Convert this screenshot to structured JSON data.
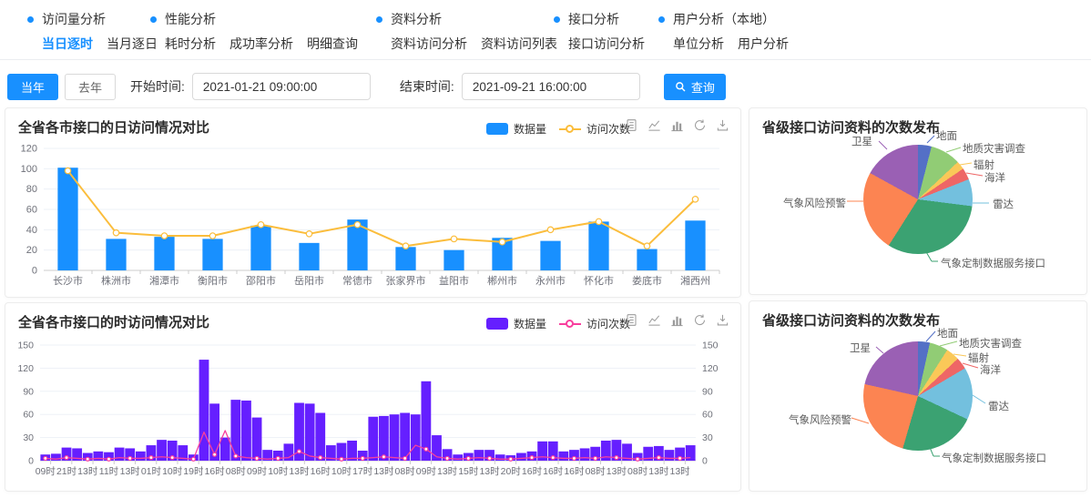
{
  "nav": {
    "groups": [
      {
        "title": "访问量分析",
        "items": [
          {
            "label": "当日逐时",
            "active": true
          },
          {
            "label": "当月逐日",
            "active": false
          }
        ]
      },
      {
        "title": "性能分析",
        "items": [
          {
            "label": "耗时分析",
            "active": false
          },
          {
            "label": "成功率分析",
            "active": false
          },
          {
            "label": "明细查询",
            "active": false
          }
        ]
      },
      {
        "title": "资料分析",
        "items": [
          {
            "label": "资料访问分析",
            "active": false
          },
          {
            "label": "资料访问列表",
            "active": false
          }
        ]
      },
      {
        "title": "接口分析",
        "items": [
          {
            "label": "接口访问分析",
            "active": false
          }
        ]
      },
      {
        "title": "用户分析（本地）",
        "items": [
          {
            "label": "单位分析",
            "active": false
          },
          {
            "label": "用户分析",
            "active": false
          }
        ]
      }
    ]
  },
  "filters": {
    "this_year": "当年",
    "last_year": "去年",
    "start_label": "开始时间:",
    "start_value": "2021-01-21 09:00:00",
    "end_label": "结束时间:",
    "end_value": "2021-09-21 16:00:00",
    "search_label": "查询"
  },
  "colors": {
    "primary": "#1890ff"
  },
  "toolbox_icons": [
    "data-view",
    "line-chart",
    "bar-chart",
    "restore",
    "download"
  ],
  "chart_data": [
    {
      "id": "daily",
      "type": "bar",
      "title": "全省各市接口的日访问情况对比",
      "categories": [
        "长沙市",
        "株洲市",
        "湘潭市",
        "衡阳市",
        "邵阳市",
        "岳阳市",
        "常德市",
        "张家界市",
        "益阳市",
        "郴州市",
        "永州市",
        "怀化市",
        "娄底市",
        "湘西州"
      ],
      "series": [
        {
          "name": "数据量",
          "type": "bar",
          "color": "#1890ff",
          "values": [
            101,
            31,
            33,
            31,
            44,
            27,
            50,
            23,
            20,
            32,
            29,
            48,
            21,
            49
          ]
        },
        {
          "name": "访问次数",
          "type": "line",
          "color": "#fbbd3c",
          "values": [
            98,
            37,
            34,
            34,
            45,
            36,
            45,
            24,
            31,
            28,
            40,
            48,
            24,
            70
          ]
        }
      ],
      "ylim": [
        0,
        120
      ],
      "y_interval": 20,
      "grid": true,
      "legend_position": "top"
    },
    {
      "id": "hourly",
      "type": "bar",
      "title": "全省各市接口的时访问情况对比",
      "x_labels": [
        "09时",
        "21时",
        "13时",
        "11时",
        "13时",
        "01时",
        "10时",
        "19时",
        "16时",
        "08时",
        "09时",
        "10时",
        "13时",
        "16时",
        "10时",
        "17时",
        "13时",
        "08时",
        "09时",
        "13时",
        "15时",
        "13时",
        "20时",
        "16时",
        "16时",
        "16时",
        "08时",
        "13时",
        "08时",
        "13时",
        "13时"
      ],
      "label_interval": 2,
      "series": [
        {
          "name": "数据量",
          "type": "bar",
          "color": "#651fff",
          "values": [
            8,
            9,
            17,
            16,
            10,
            12,
            11,
            17,
            16,
            12,
            20,
            27,
            26,
            20,
            8,
            131,
            74,
            30,
            79,
            78,
            56,
            14,
            13,
            22,
            75,
            74,
            62,
            20,
            23,
            26,
            13,
            57,
            58,
            60,
            62,
            60,
            103,
            33,
            15,
            8,
            10,
            14,
            14,
            8,
            7,
            10,
            12,
            25,
            25,
            12,
            14,
            16,
            18,
            26,
            27,
            22,
            10,
            18,
            19,
            14,
            17,
            20
          ]
        },
        {
          "name": "访问次数",
          "type": "line",
          "color": "#f83e9d",
          "values": [
            3,
            2,
            4,
            3,
            2,
            3,
            2,
            4,
            3,
            3,
            4,
            5,
            4,
            3,
            2,
            37,
            8,
            39,
            6,
            4,
            3,
            2,
            3,
            4,
            12,
            6,
            4,
            3,
            2,
            3,
            3,
            4,
            5,
            4,
            3,
            20,
            15,
            5,
            3,
            2,
            3,
            4,
            3,
            2,
            2,
            3,
            4,
            5,
            4,
            3,
            3,
            4,
            3,
            5,
            4,
            3,
            2,
            3,
            4,
            3,
            3,
            4
          ]
        }
      ],
      "ylim": [
        0,
        150
      ],
      "y_interval": 30,
      "grid": true,
      "dual_axis": true,
      "legend_position": "top"
    },
    {
      "id": "pie-province-1",
      "type": "pie",
      "title": "省级接口访问资料的次数发布",
      "slices": [
        {
          "label": "地面",
          "value": 4,
          "color": "#5470c6"
        },
        {
          "label": "地质灾害调查",
          "value": 9,
          "color": "#91cc75"
        },
        {
          "label": "辐射",
          "value": 2.5,
          "color": "#fac858"
        },
        {
          "label": "海洋",
          "value": 3.5,
          "color": "#ee6666"
        },
        {
          "label": "雷达",
          "value": 8,
          "color": "#73c0de"
        },
        {
          "label": "气象定制数据服务接口",
          "value": 32,
          "color": "#3ba272"
        },
        {
          "label": "气象风险预警",
          "value": 24,
          "color": "#fc8452"
        },
        {
          "label": "卫星",
          "value": 17,
          "color": "#9a60b4"
        }
      ]
    },
    {
      "id": "pie-province-2",
      "type": "pie",
      "title": "省级接口访问资料的次数发布",
      "slices": [
        {
          "label": "地面",
          "value": 3.5,
          "color": "#5470c6"
        },
        {
          "label": "地质灾害调查",
          "value": 5.5,
          "color": "#91cc75"
        },
        {
          "label": "辐射",
          "value": 4,
          "color": "#fac858"
        },
        {
          "label": "海洋",
          "value": 3.5,
          "color": "#ee6666"
        },
        {
          "label": "雷达",
          "value": 15.5,
          "color": "#73c0de"
        },
        {
          "label": "气象定制数据服务接口",
          "value": 22.5,
          "color": "#3ba272"
        },
        {
          "label": "气象风险预警",
          "value": 24,
          "color": "#fc8452"
        },
        {
          "label": "卫星",
          "value": 21.5,
          "color": "#9a60b4"
        }
      ]
    }
  ]
}
